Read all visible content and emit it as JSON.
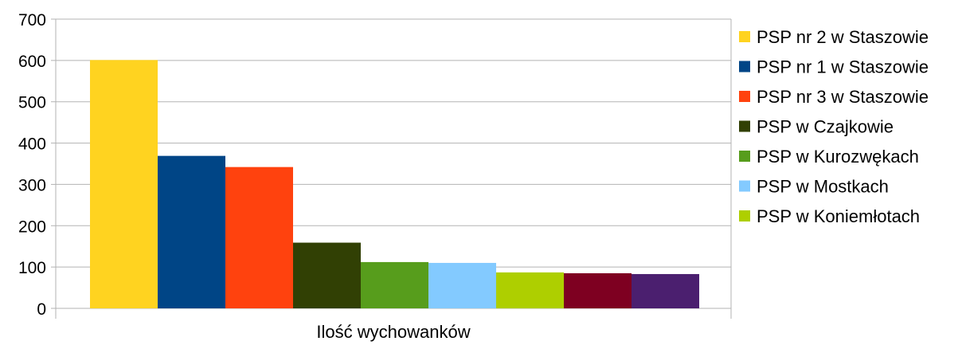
{
  "chart_data": {
    "type": "bar",
    "categories": [
      "Ilość wychowanków"
    ],
    "series": [
      {
        "name": "PSP nr 2 w Staszowie",
        "values": [
          601
        ],
        "color": "#FFD320"
      },
      {
        "name": "PSP nr 1 w Staszowie",
        "values": [
          369
        ],
        "color": "#004586"
      },
      {
        "name": "PSP nr 3 w Staszowie",
        "values": [
          342
        ],
        "color": "#FF420E"
      },
      {
        "name": "PSP w Czajkowie",
        "values": [
          159
        ],
        "color": "#314004"
      },
      {
        "name": "PSP w Kurozwękach",
        "values": [
          112
        ],
        "color": "#579D1C"
      },
      {
        "name": "PSP w Mostkach",
        "values": [
          110
        ],
        "color": "#83CAFF"
      },
      {
        "name": "PSP w Koniemłotach",
        "values": [
          87
        ],
        "color": "#AECF00"
      },
      {
        "values": [
          85
        ],
        "color": "#7E0021"
      },
      {
        "values": [
          83
        ],
        "color": "#4B1F6F"
      }
    ],
    "ylim": [
      0,
      700
    ],
    "yticks": [
      0,
      100,
      200,
      300,
      400,
      500,
      600,
      700
    ],
    "grid": true,
    "legend": "right"
  }
}
